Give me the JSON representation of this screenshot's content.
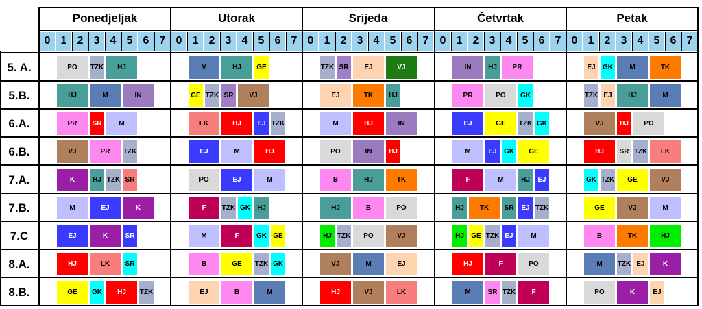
{
  "days": [
    "Ponedjeljak",
    "Utorak",
    "Srijeda",
    "Četvrtak",
    "Petak"
  ],
  "periods": [
    "0",
    "1",
    "2",
    "3",
    "4",
    "5",
    "6",
    "7"
  ],
  "classes": [
    "5. A.",
    "5.B.",
    "6.A.",
    "6.B.",
    "7.A.",
    "7.B.",
    "7.C",
    "8.A.",
    "8.B."
  ],
  "subject_colors": {
    "PO": "#d9d9d9",
    "TZK": "#a6b0cc",
    "HJ": "#4a9e9a",
    "GE": "#ffff00",
    "M": "#5b7db6",
    "SR": "#a07fc6",
    "EJ": "#fdd3b0",
    "VJ": "#1f7c14",
    "IN": "#9b7bc0",
    "PR": "#ff88f0",
    "TK": "#ff7b00",
    "GK": "#00ffff",
    "LK": "#f87e7e",
    "F": "#c00056",
    "B": "#ff88f0",
    "K": "#9b1ea6"
  },
  "schedule": [
    [
      [
        [
          "PO",
          1,
          2,
          "#d9d9d9"
        ],
        [
          "TZK",
          3,
          1,
          "#a6b0cc"
        ],
        [
          "HJ",
          4,
          2,
          "#4a9e9a"
        ]
      ],
      [
        [
          "M",
          1,
          2,
          "#5b7db6"
        ],
        [
          "HJ",
          3,
          2,
          "#4a9e9a"
        ],
        [
          "GE",
          5,
          1,
          "#ffff00"
        ]
      ],
      [
        [
          "TZK",
          1,
          1,
          "#a6b0cc"
        ],
        [
          "SR",
          2,
          1,
          "#a07fc6"
        ],
        [
          "EJ",
          3,
          2,
          "#fdd3b0"
        ],
        [
          "VJ",
          5,
          2,
          "#1f7c14"
        ]
      ],
      [
        [
          "IN",
          1,
          2,
          "#9b7bc0"
        ],
        [
          "HJ",
          3,
          1,
          "#4a9e9a"
        ],
        [
          "PR",
          4,
          2,
          "#ff88f0"
        ]
      ],
      [
        [
          "EJ",
          1,
          1,
          "#fdd3b0"
        ],
        [
          "GK",
          2,
          1,
          "#00ffff"
        ],
        [
          "M",
          3,
          2,
          "#5b7db6"
        ],
        [
          "TK",
          5,
          2,
          "#ff7b00"
        ]
      ]
    ],
    [
      [
        [
          "HJ",
          1,
          2,
          "#4a9e9a"
        ],
        [
          "M",
          3,
          2,
          "#5b7db6"
        ],
        [
          "IN",
          5,
          2,
          "#9b7bc0"
        ]
      ],
      [
        [
          "GE",
          1,
          1,
          "#ffff00"
        ],
        [
          "TZK",
          2,
          1,
          "#a6b0cc"
        ],
        [
          "SR",
          3,
          1,
          "#a07fc6"
        ],
        [
          "VJ",
          4,
          2,
          "#b07f5c"
        ]
      ],
      [
        [
          "EJ",
          1,
          2,
          "#fdd3b0"
        ],
        [
          "TK",
          3,
          2,
          "#ff7b00"
        ],
        [
          "HJ",
          5,
          1,
          "#4a9e9a"
        ]
      ],
      [
        [
          "PR",
          1,
          2,
          "#ff88f0"
        ],
        [
          "PO",
          3,
          2,
          "#d9d9d9"
        ],
        [
          "GK",
          5,
          1,
          "#00ffff"
        ]
      ],
      [
        [
          "TZK",
          1,
          1,
          "#a6b0cc"
        ],
        [
          "EJ",
          2,
          1,
          "#fdd3b0"
        ],
        [
          "HJ",
          3,
          2,
          "#4a9e9a"
        ],
        [
          "M",
          5,
          2,
          "#5b7db6"
        ]
      ]
    ],
    [
      [
        [
          "PR",
          1,
          2,
          "#ff88f0"
        ],
        [
          "SR",
          3,
          1,
          "#ff0000"
        ],
        [
          "M",
          4,
          2,
          "#bfbfff"
        ]
      ],
      [
        [
          "LK",
          1,
          2,
          "#f87e7e"
        ],
        [
          "HJ",
          3,
          2,
          "#ff0000"
        ],
        [
          "EJ",
          5,
          1,
          "#3b3bff"
        ],
        [
          "TZK",
          6,
          1,
          "#a6b0cc"
        ]
      ],
      [
        [
          "M",
          1,
          2,
          "#bfbfff"
        ],
        [
          "HJ",
          3,
          2,
          "#ff0000"
        ],
        [
          "IN",
          5,
          2,
          "#9b7bc0"
        ]
      ],
      [
        [
          "EJ",
          1,
          2,
          "#3b3bff"
        ],
        [
          "GE",
          3,
          2,
          "#ffff00"
        ],
        [
          "TZK",
          5,
          1,
          "#a6b0cc"
        ],
        [
          "GK",
          6,
          1,
          "#00ffff"
        ]
      ],
      [
        [
          "VJ",
          1,
          2,
          "#b07f5c"
        ],
        [
          "HJ",
          3,
          1,
          "#ff0000"
        ],
        [
          "PO",
          4,
          2,
          "#d9d9d9"
        ]
      ]
    ],
    [
      [
        [
          "VJ",
          1,
          2,
          "#b07f5c"
        ],
        [
          "PR",
          3,
          2,
          "#ff88f0"
        ],
        [
          "TZK",
          5,
          1,
          "#a6b0cc"
        ]
      ],
      [
        [
          "EJ",
          1,
          2,
          "#3b3bff"
        ],
        [
          "M",
          3,
          2,
          "#bfbfff"
        ],
        [
          "HJ",
          5,
          2,
          "#ff0000"
        ]
      ],
      [
        [
          "PO",
          1,
          2,
          "#d9d9d9"
        ],
        [
          "IN",
          3,
          2,
          "#9b7bc0"
        ],
        [
          "HJ",
          5,
          1,
          "#ff0000"
        ]
      ],
      [
        [
          "M",
          1,
          2,
          "#bfbfff"
        ],
        [
          "EJ",
          3,
          1,
          "#3b3bff"
        ],
        [
          "GK",
          4,
          1,
          "#00ffff"
        ],
        [
          "GE",
          5,
          2,
          "#ffff00"
        ]
      ],
      [
        [
          "HJ",
          1,
          2,
          "#ff0000"
        ],
        [
          "SR",
          3,
          1,
          "#d9d9d9"
        ],
        [
          "TZK",
          4,
          1,
          "#a6b0cc"
        ],
        [
          "LK",
          5,
          2,
          "#f87e7e"
        ]
      ]
    ],
    [
      [
        [
          "K",
          1,
          2,
          "#9b1ea6"
        ],
        [
          "HJ",
          3,
          1,
          "#4a9e9a"
        ],
        [
          "TZK",
          4,
          1,
          "#a6b0cc"
        ],
        [
          "SR",
          5,
          1,
          "#f87e7e"
        ]
      ],
      [
        [
          "PO",
          1,
          2,
          "#d9d9d9"
        ],
        [
          "EJ",
          3,
          2,
          "#3b3bff"
        ],
        [
          "M",
          5,
          2,
          "#bfbfff"
        ]
      ],
      [
        [
          "B",
          1,
          2,
          "#ff88f0"
        ],
        [
          "HJ",
          3,
          2,
          "#4a9e9a"
        ],
        [
          "TK",
          5,
          2,
          "#ff7b00"
        ]
      ],
      [
        [
          "F",
          1,
          2,
          "#c00056"
        ],
        [
          "M",
          3,
          2,
          "#bfbfff"
        ],
        [
          "HJ",
          5,
          1,
          "#4a9e9a"
        ],
        [
          "EJ",
          6,
          1,
          "#3b3bff"
        ]
      ],
      [
        [
          "GK",
          1,
          1,
          "#00ffff"
        ],
        [
          "TZK",
          2,
          1,
          "#a6b0cc"
        ],
        [
          "GE",
          3,
          2,
          "#ffff00"
        ],
        [
          "VJ",
          5,
          2,
          "#b07f5c"
        ]
      ]
    ],
    [
      [
        [
          "M",
          1,
          2,
          "#bfbfff"
        ],
        [
          "EJ",
          3,
          2,
          "#3b3bff"
        ],
        [
          "K",
          5,
          2,
          "#9b1ea6"
        ]
      ],
      [
        [
          "F",
          1,
          2,
          "#c00056"
        ],
        [
          "TZK",
          3,
          1,
          "#a6b0cc"
        ],
        [
          "GK",
          4,
          1,
          "#00ffff"
        ],
        [
          "HJ",
          5,
          1,
          "#4a9e9a"
        ]
      ],
      [
        [
          "HJ",
          1,
          2,
          "#4a9e9a"
        ],
        [
          "B",
          3,
          2,
          "#ff88f0"
        ],
        [
          "PO",
          5,
          2,
          "#d9d9d9"
        ]
      ],
      [
        [
          "HJ",
          1,
          1,
          "#4a9e9a"
        ],
        [
          "TK",
          2,
          2,
          "#ff7b00"
        ],
        [
          "SR",
          4,
          1,
          "#4a9e9a"
        ],
        [
          "EJ",
          5,
          1,
          "#3b3bff"
        ],
        [
          "TZK",
          6,
          1,
          "#a6b0cc"
        ]
      ],
      [
        [
          "GE",
          1,
          2,
          "#ffff00"
        ],
        [
          "VJ",
          3,
          2,
          "#b07f5c"
        ],
        [
          "M",
          5,
          2,
          "#bfbfff"
        ]
      ]
    ],
    [
      [
        [
          "EJ",
          1,
          2,
          "#3b3bff"
        ],
        [
          "K",
          3,
          2,
          "#9b1ea6"
        ],
        [
          "SR",
          5,
          1,
          "#3b3bff"
        ]
      ],
      [
        [
          "M",
          1,
          2,
          "#bfbfff"
        ],
        [
          "F",
          3,
          2,
          "#c00056"
        ],
        [
          "GK",
          5,
          1,
          "#00ffff"
        ],
        [
          "GE",
          6,
          1,
          "#ffff00"
        ]
      ],
      [
        [
          "HJ",
          1,
          1,
          "#00ee00"
        ],
        [
          "TZK",
          2,
          1,
          "#a6b0cc"
        ],
        [
          "PO",
          3,
          2,
          "#d9d9d9"
        ],
        [
          "VJ",
          5,
          2,
          "#b07f5c"
        ]
      ],
      [
        [
          "HJ",
          1,
          1,
          "#00ee00"
        ],
        [
          "GE",
          2,
          1,
          "#ffff00"
        ],
        [
          "TZK",
          3,
          1,
          "#a6b0cc"
        ],
        [
          "EJ",
          4,
          1,
          "#3b3bff"
        ],
        [
          "M",
          5,
          2,
          "#bfbfff"
        ]
      ],
      [
        [
          "B",
          1,
          2,
          "#ff88f0"
        ],
        [
          "TK",
          3,
          2,
          "#ff7b00"
        ],
        [
          "HJ",
          5,
          2,
          "#00ee00"
        ]
      ]
    ],
    [
      [
        [
          "HJ",
          1,
          2,
          "#ff0000"
        ],
        [
          "LK",
          3,
          2,
          "#f87e7e"
        ],
        [
          "SR",
          5,
          1,
          "#00ffff"
        ]
      ],
      [
        [
          "B",
          1,
          2,
          "#ff88f0"
        ],
        [
          "GE",
          3,
          2,
          "#ffff00"
        ],
        [
          "TZK",
          5,
          1,
          "#a6b0cc"
        ],
        [
          "GK",
          6,
          1,
          "#00ffff"
        ]
      ],
      [
        [
          "VJ",
          1,
          2,
          "#b07f5c"
        ],
        [
          "M",
          3,
          2,
          "#5b7db6"
        ],
        [
          "EJ",
          5,
          2,
          "#fdd3b0"
        ]
      ],
      [
        [
          "HJ",
          1,
          2,
          "#ff0000"
        ],
        [
          "F",
          3,
          2,
          "#c00056"
        ],
        [
          "PO",
          5,
          2,
          "#d9d9d9"
        ]
      ],
      [
        [
          "M",
          1,
          2,
          "#5b7db6"
        ],
        [
          "TZK",
          3,
          1,
          "#a6b0cc"
        ],
        [
          "EJ",
          4,
          1,
          "#fdd3b0"
        ],
        [
          "K",
          5,
          2,
          "#9b1ea6"
        ]
      ]
    ],
    [
      [
        [
          "GE",
          1,
          2,
          "#ffff00"
        ],
        [
          "GK",
          3,
          1,
          "#00ffff"
        ],
        [
          "HJ",
          4,
          2,
          "#ff0000"
        ],
        [
          "TZK",
          6,
          1,
          "#a6b0cc"
        ]
      ],
      [
        [
          "EJ",
          1,
          2,
          "#fdd3b0"
        ],
        [
          "B",
          3,
          2,
          "#ff88f0"
        ],
        [
          "M",
          5,
          2,
          "#5b7db6"
        ]
      ],
      [
        [
          "HJ",
          1,
          2,
          "#ff0000"
        ],
        [
          "VJ",
          3,
          2,
          "#b07f5c"
        ],
        [
          "LK",
          5,
          2,
          "#f87e7e"
        ]
      ],
      [
        [
          "M",
          1,
          2,
          "#5b7db6"
        ],
        [
          "SR",
          3,
          1,
          "#ff88f0"
        ],
        [
          "TZK",
          4,
          1,
          "#a6b0cc"
        ],
        [
          "F",
          5,
          2,
          "#c00056"
        ]
      ],
      [
        [
          "PO",
          1,
          2,
          "#d9d9d9"
        ],
        [
          "K",
          3,
          2,
          "#9b1ea6"
        ],
        [
          "EJ",
          5,
          1,
          "#fdd3b0"
        ]
      ]
    ]
  ]
}
